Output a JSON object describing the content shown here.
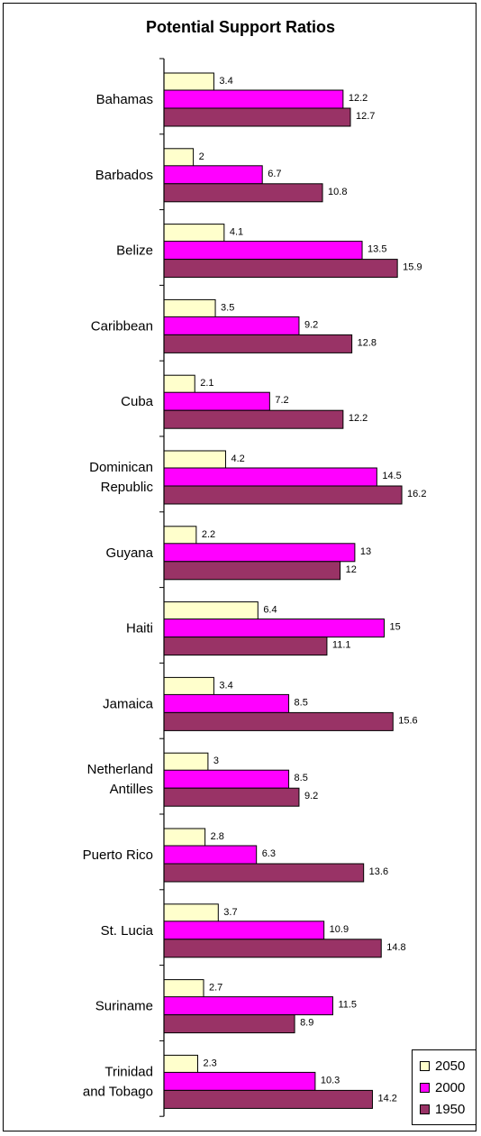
{
  "chart_data": {
    "type": "bar",
    "orientation": "horizontal",
    "title": "Potential Support Ratios",
    "categories": [
      "Bahamas",
      "Barbados",
      "Belize",
      "Caribbean",
      "Cuba",
      "Dominican Republic",
      "Guyana",
      "Haiti",
      "Jamaica",
      "Netherland Antilles",
      "Puerto Rico",
      "St. Lucia",
      "Suriname",
      "Trinidad and Tobago"
    ],
    "category_lines": [
      [
        "Bahamas"
      ],
      [
        "Barbados"
      ],
      [
        "Belize"
      ],
      [
        "Caribbean"
      ],
      [
        "Cuba"
      ],
      [
        "Dominican",
        "Republic"
      ],
      [
        "Guyana"
      ],
      [
        "Haiti"
      ],
      [
        "Jamaica"
      ],
      [
        "Netherland",
        "Antilles"
      ],
      [
        "Puerto Rico"
      ],
      [
        "St. Lucia"
      ],
      [
        "Suriname"
      ],
      [
        "Trinidad",
        "and Tobago"
      ]
    ],
    "series": [
      {
        "name": "2050",
        "color": "#ffffcc",
        "values": [
          3.4,
          2,
          4.1,
          3.5,
          2.1,
          4.2,
          2.2,
          6.4,
          3.4,
          3,
          2.8,
          3.7,
          2.7,
          2.3
        ]
      },
      {
        "name": "2000",
        "color": "#ff00ff",
        "values": [
          12.2,
          6.7,
          13.5,
          9.2,
          7.2,
          14.5,
          13,
          15,
          8.5,
          8.5,
          6.3,
          10.9,
          11.5,
          10.3
        ]
      },
      {
        "name": "1950",
        "color": "#993366",
        "values": [
          12.7,
          10.8,
          15.9,
          12.8,
          12.2,
          16.2,
          12,
          11.1,
          15.6,
          9.2,
          13.6,
          14.8,
          8.9,
          14.2
        ]
      }
    ],
    "xlim": [
      0,
      17
    ],
    "grid": false,
    "legend": "bottom-right"
  }
}
